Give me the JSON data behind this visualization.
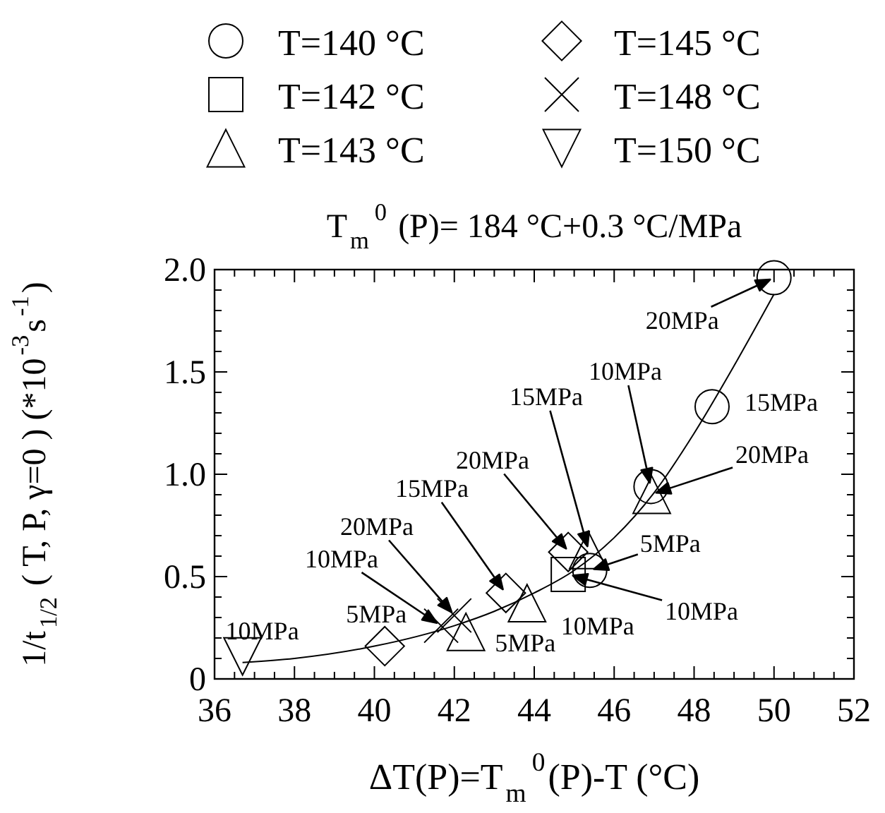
{
  "chart_data": {
    "type": "scatter",
    "title": "T$_{m}$$^{0}$ (P)= 184 °C+0.3 °C/MPa",
    "xlabel": "ΔT(P)=T$_{m}$$^{0}$(P)-T (°C)",
    "ylabel": "1/t$_{1/2}$ ( T, P, γ=0 ) (*10$^{-3}$s$^{-1}$)",
    "xlim": [
      36,
      52
    ],
    "xticks": [
      36,
      {
        "value": 36.5,
        "label": null
      },
      {
        "value": 37,
        "label": null
      },
      {
        "value": 37.5,
        "label": null
      },
      38,
      {
        "value": 38.5,
        "label": null
      },
      {
        "value": 39,
        "label": null
      },
      {
        "value": 39.5,
        "label": null
      },
      40,
      {
        "value": 40.5,
        "label": null
      },
      {
        "value": 41,
        "label": null
      },
      {
        "value": 41.5,
        "label": null
      },
      42,
      {
        "value": 42.5,
        "label": null
      },
      {
        "value": 43,
        "label": null
      },
      {
        "value": 43.5,
        "label": null
      },
      44,
      {
        "value": 44.5,
        "label": null
      },
      {
        "value": 45,
        "label": null
      },
      {
        "value": 45.5,
        "label": null
      },
      46,
      {
        "value": 46.5,
        "label": null
      },
      {
        "value": 47,
        "label": null
      },
      {
        "value": 47.5,
        "label": null
      },
      48,
      {
        "value": 48.5,
        "label": null
      },
      {
        "value": 49,
        "label": null
      },
      {
        "value": 49.5,
        "label": null
      },
      50,
      {
        "value": 50.5,
        "label": null
      },
      {
        "value": 51,
        "label": null
      },
      {
        "value": 51.5,
        "label": null
      },
      52
    ],
    "ylim": [
      0,
      2
    ],
    "yticks": [
      0,
      {
        "value": 0.1,
        "label": null
      },
      {
        "value": 0.2,
        "label": null
      },
      {
        "value": 0.3,
        "label": null
      },
      {
        "value": 0.4,
        "label": null
      },
      0.5,
      {
        "value": 0.6,
        "label": null
      },
      {
        "value": 0.7,
        "label": null
      },
      {
        "value": 0.8,
        "label": null
      },
      {
        "value": 0.9,
        "label": null
      },
      {
        "value": 1,
        "label": "1.0"
      },
      {
        "value": 1.1,
        "label": null
      },
      {
        "value": 1.2,
        "label": null
      },
      {
        "value": 1.3,
        "label": null
      },
      {
        "value": 1.4,
        "label": null
      },
      1.5,
      {
        "value": 1.6,
        "label": null
      },
      {
        "value": 1.7,
        "label": null
      },
      {
        "value": 1.8,
        "label": null
      },
      {
        "value": 1.9,
        "label": null
      },
      {
        "value": 2,
        "label": "2.0"
      }
    ],
    "legend": "top",
    "grid": false,
    "series": [
      {
        "name": "T=140 °C",
        "color": "#000000",
        "marker": "circle",
        "x": [
          50.0,
          48.45,
          46.92,
          45.39
        ],
        "values": [
          1.96,
          1.33,
          0.94,
          0.53
        ]
      },
      {
        "name": "T=142 °C",
        "color": "#000000",
        "marker": "square",
        "x": [
          44.85
        ],
        "values": [
          0.51
        ]
      },
      {
        "name": "T=143 °C",
        "color": "#000000",
        "marker": "triangle",
        "x": [
          46.94,
          45.35,
          43.82,
          42.29
        ],
        "values": [
          0.9,
          0.63,
          0.37,
          0.23
        ]
      },
      {
        "name": "T=145 °C",
        "color": "#000000",
        "marker": "diamond",
        "x": [
          40.26,
          43.29,
          44.85
        ],
        "values": [
          0.16,
          0.42,
          0.62
        ]
      },
      {
        "name": "T=148 °C",
        "color": "#000000",
        "marker": "cross",
        "x": [
          41.67,
          42.0
        ],
        "values": [
          0.26,
          0.31
        ]
      },
      {
        "name": "T=150 °C",
        "color": "#000000",
        "marker": "triangle-down",
        "x": [
          36.7
        ],
        "values": [
          0.11
        ]
      },
      {
        "type": "line",
        "color": "#000000",
        "marker": "none",
        "x": [
          36.7,
          38,
          40,
          42,
          43,
          44,
          45,
          46,
          47,
          48,
          49,
          50
        ],
        "values": [
          0.08,
          0.1,
          0.16,
          0.26,
          0.33,
          0.42,
          0.53,
          0.69,
          0.91,
          1.2,
          1.53,
          1.88
        ]
      }
    ],
    "annotations": [
      {
        "text": "20MPa",
        "x": 50.0,
        "y": 1.96
      },
      {
        "text": "15MPa",
        "x": 48.45,
        "y": 1.33
      },
      "10MPa",
      "20MPa",
      {
        "text": "5MPa",
        "x": 45.39,
        "y": 0.53
      },
      "10MPa",
      "15MPa",
      "20MPa",
      "15MPa",
      "20MPa",
      "10MPa",
      {
        "text": "5MPa",
        "x": 40.26,
        "y": 0.16
      },
      {
        "text": "5MPa",
        "x": 42.29,
        "y": 0.23
      },
      {
        "text": "10MPa",
        "x": 43.82,
        "y": 0.37
      },
      {
        "text": "10MPa",
        "x": 36.7,
        "y": 0.11
      }
    ]
  }
}
